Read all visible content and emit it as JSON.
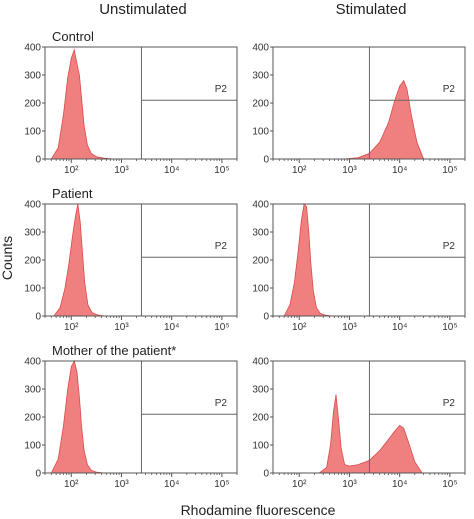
{
  "column_headers": [
    "Unstimulated",
    "Stimulated"
  ],
  "row_labels": [
    "Control",
    "Patient",
    "Mother of the patient*"
  ],
  "y_axis_label": "Counts",
  "x_axis_label": "Rhodamine fluorescence",
  "gate_label": "P2",
  "colors": {
    "histogram_fill": "#f08080",
    "histogram_edge": "#d94b4b",
    "frame": "#555555",
    "gate_line": "#666666"
  },
  "chart_data": [
    {
      "type": "area",
      "panel": "Control - Unstimulated",
      "x_scale": "log",
      "xlim": [
        30,
        200000
      ],
      "ylim": [
        0,
        400
      ],
      "x_ticks": [
        "10²",
        "10³",
        "10⁴",
        "10⁵"
      ],
      "y_ticks": [
        0,
        100,
        200,
        300,
        400
      ],
      "gate": {
        "name": "P2",
        "x_start": 2500,
        "y_level": 210
      },
      "x": [
        40,
        55,
        70,
        85,
        100,
        115,
        130,
        145,
        160,
        180,
        210,
        250,
        320,
        450,
        700
      ],
      "values": [
        0,
        40,
        160,
        290,
        360,
        390,
        340,
        300,
        220,
        120,
        50,
        20,
        8,
        3,
        0
      ]
    },
    {
      "type": "area",
      "panel": "Control - Stimulated",
      "x_scale": "log",
      "xlim": [
        30,
        200000
      ],
      "ylim": [
        0,
        400
      ],
      "x_ticks": [
        "10²",
        "10³",
        "10⁴",
        "10⁵"
      ],
      "y_ticks": [
        0,
        100,
        200,
        300,
        400
      ],
      "gate": {
        "name": "P2",
        "x_start": 2500,
        "y_level": 210
      },
      "x": [
        800,
        1500,
        2500,
        4000,
        6000,
        8000,
        10000,
        12000,
        14000,
        17000,
        22000,
        30000
      ],
      "values": [
        0,
        5,
        20,
        60,
        130,
        210,
        260,
        280,
        250,
        160,
        60,
        0
      ]
    },
    {
      "type": "area",
      "panel": "Patient - Unstimulated",
      "x_scale": "log",
      "xlim": [
        30,
        200000
      ],
      "ylim": [
        0,
        400
      ],
      "x_ticks": [
        "10²",
        "10³",
        "10⁴",
        "10⁵"
      ],
      "y_ticks": [
        0,
        100,
        200,
        300,
        400
      ],
      "gate": {
        "name": "P2",
        "x_start": 2500,
        "y_level": 210
      },
      "x": [
        45,
        60,
        75,
        90,
        105,
        120,
        135,
        150,
        165,
        185,
        215,
        260,
        330,
        460
      ],
      "values": [
        0,
        30,
        100,
        190,
        280,
        350,
        400,
        340,
        240,
        120,
        40,
        12,
        4,
        0
      ]
    },
    {
      "type": "area",
      "panel": "Patient - Stimulated",
      "x_scale": "log",
      "xlim": [
        30,
        200000
      ],
      "ylim": [
        0,
        400
      ],
      "x_ticks": [
        "10²",
        "10³",
        "10⁴",
        "10⁵"
      ],
      "y_ticks": [
        0,
        100,
        200,
        300,
        400
      ],
      "gate": {
        "name": "P2",
        "x_start": 2500,
        "y_level": 210
      },
      "x": [
        50,
        65,
        80,
        95,
        110,
        125,
        140,
        155,
        170,
        190,
        220,
        260,
        330,
        450
      ],
      "values": [
        0,
        40,
        120,
        230,
        340,
        400,
        390,
        300,
        190,
        90,
        30,
        10,
        3,
        0
      ]
    },
    {
      "type": "area",
      "panel": "Mother of the patient* - Unstimulated",
      "x_scale": "log",
      "xlim": [
        30,
        200000
      ],
      "ylim": [
        0,
        400
      ],
      "x_ticks": [
        "10²",
        "10³",
        "10⁴",
        "10⁵"
      ],
      "y_ticks": [
        0,
        100,
        200,
        300,
        400
      ],
      "gate": {
        "name": "P2",
        "x_start": 2500,
        "y_level": 210
      },
      "x": [
        40,
        55,
        70,
        85,
        100,
        115,
        130,
        145,
        160,
        180,
        210,
        250,
        320,
        450
      ],
      "values": [
        0,
        50,
        170,
        300,
        380,
        400,
        360,
        270,
        170,
        80,
        30,
        10,
        3,
        0
      ]
    },
    {
      "type": "area",
      "panel": "Mother of the patient* - Stimulated",
      "x_scale": "log",
      "xlim": [
        30,
        200000
      ],
      "ylim": [
        0,
        400
      ],
      "x_ticks": [
        "10²",
        "10³",
        "10⁴",
        "10⁵"
      ],
      "y_ticks": [
        0,
        100,
        200,
        300,
        400
      ],
      "gate": {
        "name": "P2",
        "x_start": 2500,
        "y_level": 210
      },
      "x": [
        250,
        350,
        420,
        480,
        540,
        600,
        680,
        800,
        1000,
        1500,
        2500,
        4000,
        6000,
        8000,
        10000,
        12000,
        15000,
        20000,
        28000
      ],
      "values": [
        0,
        20,
        100,
        220,
        280,
        200,
        90,
        30,
        25,
        30,
        45,
        80,
        120,
        150,
        170,
        160,
        110,
        40,
        0
      ]
    }
  ]
}
